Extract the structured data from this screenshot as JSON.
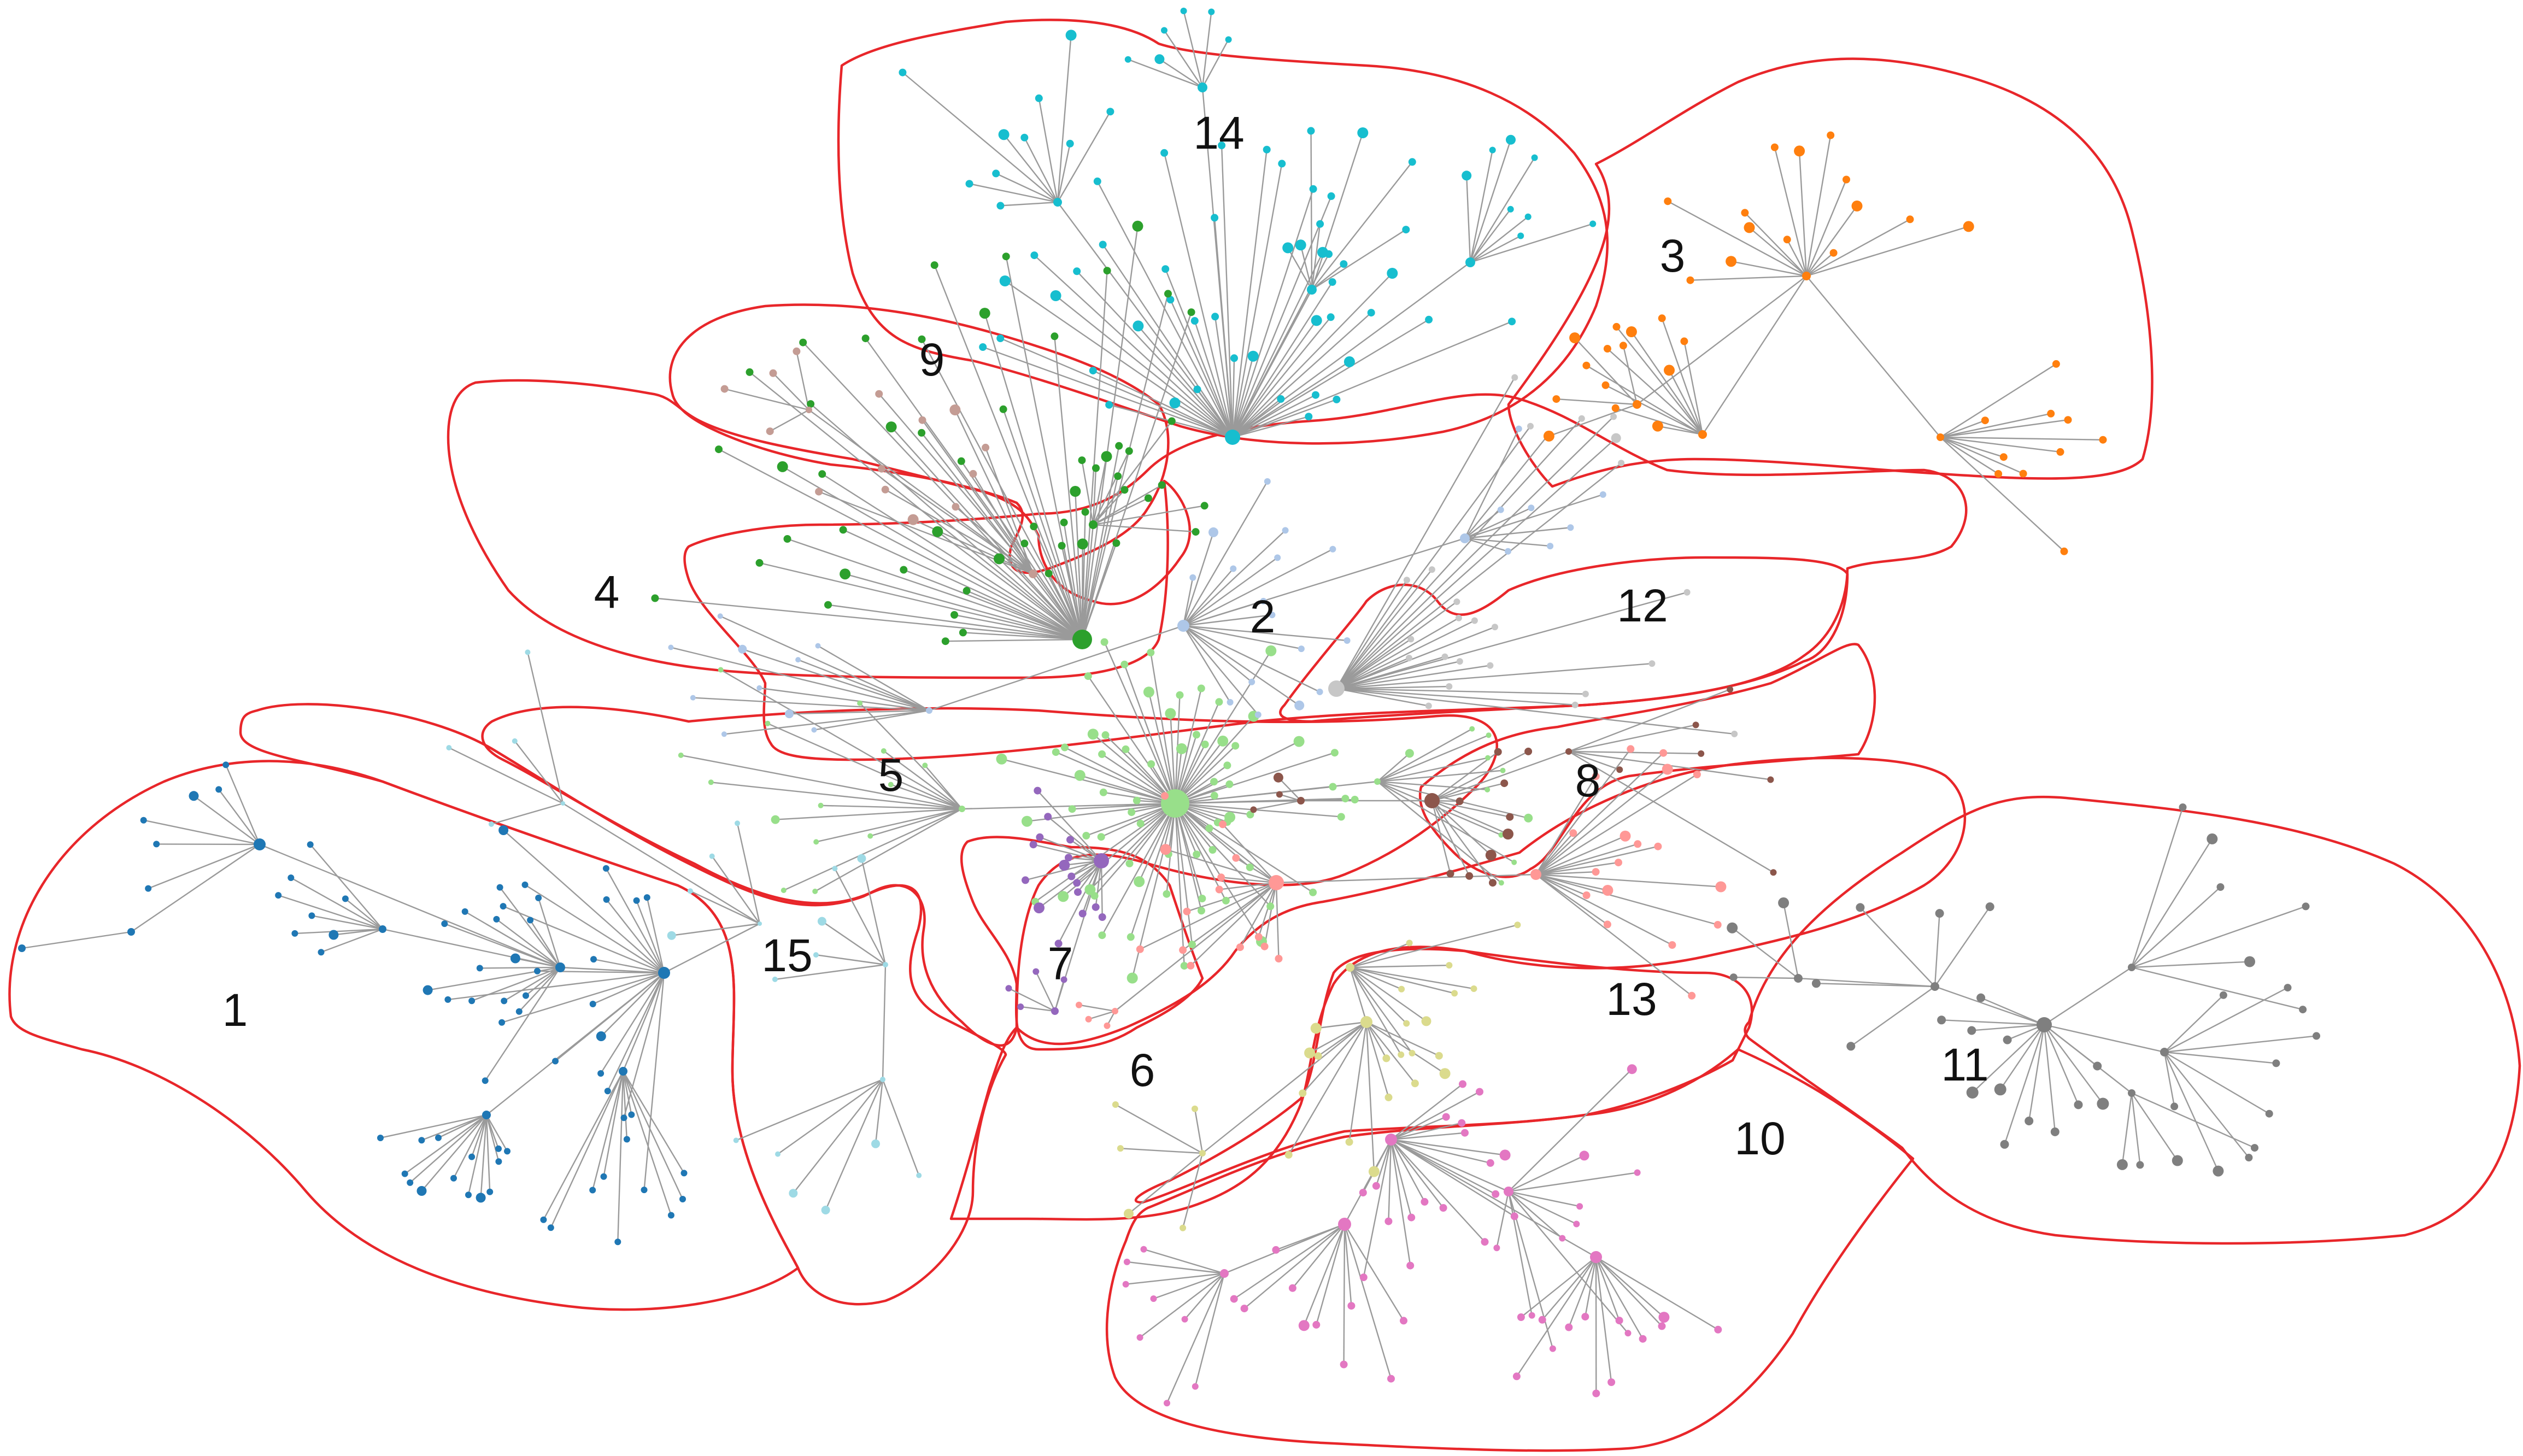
{
  "clusters": [
    {
      "label": "1",
      "color": "#1f77b4"
    },
    {
      "label": "2",
      "color": "#aec7e8"
    },
    {
      "label": "3",
      "color": "#ff7f0e"
    },
    {
      "label": "4",
      "color": "#2ca02c"
    },
    {
      "label": "5",
      "color": "#98df8a"
    },
    {
      "label": "6",
      "color": "#ff9896"
    },
    {
      "label": "7",
      "color": "#9467bd"
    },
    {
      "label": "8",
      "color": "#8c564b"
    },
    {
      "label": "9",
      "color": "#c49c94"
    },
    {
      "label": "10",
      "color": "#e377c2"
    },
    {
      "label": "11",
      "color": "#7f7f7f"
    },
    {
      "label": "12",
      "color": "#c7c7c7"
    },
    {
      "label": "13",
      "color": "#dbdb8d"
    },
    {
      "label": "14",
      "color": "#17becf"
    },
    {
      "label": "15",
      "color": "#9edae5"
    }
  ],
  "colors": {
    "outline": "#e8262a",
    "edge": "#9a9a9a",
    "background": "#ffffff"
  }
}
